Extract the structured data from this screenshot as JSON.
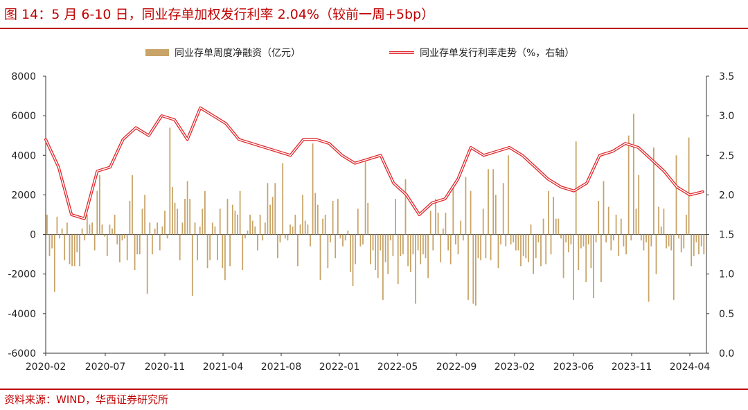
{
  "header": {
    "title": "图 14：5 月 6-10 日，同业存单加权发行利率 2.04%（较前一周+5bp）"
  },
  "footer": {
    "source": "资料来源：WIND，华西证券研究所"
  },
  "colors": {
    "accent": "#c00000",
    "bar": "#c8a468",
    "line": "#e0282c"
  },
  "chart_data": {
    "type": "bar+line",
    "x_tick_labels": [
      "2020-02",
      "2020-07",
      "2020-11",
      "2021-04",
      "2021-08",
      "2022-01",
      "2022-05",
      "2022-09",
      "2023-02",
      "2023-06",
      "2023-11",
      "2024-04"
    ],
    "y_left": {
      "min": -6000,
      "max": 8000,
      "step": 2000,
      "ticks": [
        "-6000",
        "-4000",
        "-2000",
        "0",
        "2000",
        "4000",
        "6000",
        "8000"
      ]
    },
    "y_right": {
      "min": 0.0,
      "max": 3.5,
      "step": 0.5,
      "ticks": [
        "0.0",
        "0.5",
        "1.0",
        "1.5",
        "2.0",
        "2.5",
        "3.0",
        "3.5"
      ]
    },
    "legend": {
      "position": "top",
      "bar_label": "同业存单周度净融资（亿元）",
      "line_label": "同业存单发行利率走势（%，右轴）"
    },
    "series": [
      {
        "name": "同业存单周度净融资（亿元）",
        "type": "bar",
        "axis": "left",
        "values": [
          1000,
          -1100,
          -700,
          -2900,
          900,
          -200,
          300,
          -1300,
          600,
          -1500,
          -1600,
          -1600,
          -900,
          -1600,
          300,
          -300,
          1000,
          500,
          600,
          -800,
          2200,
          3000,
          500,
          -100,
          -1100,
          500,
          300,
          1000,
          -500,
          -1400,
          -300,
          -200,
          -1300,
          1700,
          3000,
          -1800,
          -1000,
          -1000,
          1300,
          2000,
          -3000,
          600,
          -1000,
          300,
          600,
          -800,
          400,
          1200,
          -200,
          5400,
          2400,
          1600,
          1300,
          -1300,
          600,
          1800,
          2700,
          1800,
          -3100,
          600,
          -1300,
          400,
          1300,
          2200,
          -1700,
          -1300,
          600,
          400,
          -1300,
          1300,
          -1700,
          -2300,
          1800,
          -1600,
          1500,
          1200,
          1000,
          2200,
          -1800,
          -200,
          200,
          1000,
          700,
          400,
          -800,
          1000,
          -300,
          600,
          2600,
          1500,
          1900,
          2600,
          -1200,
          -400,
          3600,
          -200,
          -300,
          500,
          400,
          1000,
          -1600,
          500,
          2000,
          700,
          500,
          -600,
          4600,
          2100,
          1500,
          -2300,
          800,
          1000,
          -1700,
          -400,
          1700,
          -1200,
          1800,
          -200,
          -600,
          -300,
          200,
          -1900,
          -2600,
          -1500,
          1300,
          -600,
          -500,
          3700,
          1600,
          -1500,
          -800,
          -1800,
          -2200,
          -800,
          -3300,
          -1400,
          -2000,
          -300,
          -1100,
          1800,
          -2500,
          -1100,
          -1000,
          2800,
          -1600,
          -1900,
          -1000,
          -3500,
          -800,
          -1500,
          -1000,
          -1200,
          -2200,
          1200,
          -800,
          1800,
          1100,
          -1400,
          300,
          1100,
          -800,
          -1500,
          2500,
          -500,
          -1000,
          700,
          -300,
          2900,
          -3300,
          2200,
          -3500,
          -3600,
          -1200,
          -1300,
          1300,
          -1200,
          3300,
          -1300,
          3300,
          2000,
          -1700,
          -500,
          2600,
          -600,
          4000,
          -500,
          -400,
          -800,
          -800,
          -1600,
          -1100,
          -1200,
          -1400,
          500,
          -2000,
          -1200,
          -400,
          -1600,
          800,
          -1500,
          2200,
          -1000,
          1900,
          800,
          800,
          -200,
          -2200,
          -400,
          -900,
          -500,
          -3300,
          4700,
          -1800,
          -700,
          -600,
          -2400,
          -500,
          -1700,
          -3200,
          -400,
          1700,
          -2400,
          2700,
          -400,
          1400,
          -800,
          -300,
          1000,
          -1100,
          800,
          -600,
          -1000,
          5000,
          -300,
          6100,
          1300,
          3000,
          -300,
          -800,
          -400,
          -3400,
          -600,
          4400,
          -2000,
          1400,
          400,
          1300,
          -700,
          -600,
          -800,
          -3300,
          4000,
          -200,
          -900,
          -700,
          1000,
          4900,
          -1600,
          -1100,
          -400,
          -1000,
          -600,
          -1000
        ],
        "peaks_read": {
          "2021-02": 5400,
          "2023-11": 6100,
          "2024-02": 4900
        }
      },
      {
        "name": "同业存单发行利率走势（%，右轴）",
        "type": "line",
        "axis": "right",
        "points": [
          [
            "2020-02",
            2.7
          ],
          [
            "2020-03",
            2.35
          ],
          [
            "2020-04",
            1.75
          ],
          [
            "2020-05",
            1.7
          ],
          [
            "2020-06",
            2.3
          ],
          [
            "2020-07",
            2.35
          ],
          [
            "2020-08",
            2.7
          ],
          [
            "2020-09",
            2.85
          ],
          [
            "2020-10",
            2.75
          ],
          [
            "2020-11",
            3.0
          ],
          [
            "2020-12",
            2.95
          ],
          [
            "2021-01",
            2.7
          ],
          [
            "2021-02",
            3.1
          ],
          [
            "2021-03",
            3.0
          ],
          [
            "2021-04",
            2.9
          ],
          [
            "2021-05",
            2.7
          ],
          [
            "2021-06",
            2.65
          ],
          [
            "2021-07",
            2.6
          ],
          [
            "2021-08",
            2.55
          ],
          [
            "2021-09",
            2.5
          ],
          [
            "2021-10",
            2.7
          ],
          [
            "2021-11",
            2.7
          ],
          [
            "2021-12",
            2.65
          ],
          [
            "2022-01",
            2.5
          ],
          [
            "2022-02",
            2.4
          ],
          [
            "2022-03",
            2.45
          ],
          [
            "2022-04",
            2.5
          ],
          [
            "2022-05",
            2.15
          ],
          [
            "2022-06",
            2.0
          ],
          [
            "2022-07",
            1.75
          ],
          [
            "2022-08",
            1.9
          ],
          [
            "2022-09",
            1.95
          ],
          [
            "2022-10",
            2.2
          ],
          [
            "2022-11",
            2.6
          ],
          [
            "2022-12",
            2.5
          ],
          [
            "2023-01",
            2.55
          ],
          [
            "2023-02",
            2.6
          ],
          [
            "2023-03",
            2.5
          ],
          [
            "2023-04",
            2.35
          ],
          [
            "2023-05",
            2.2
          ],
          [
            "2023-06",
            2.1
          ],
          [
            "2023-07",
            2.05
          ],
          [
            "2023-08",
            2.15
          ],
          [
            "2023-09",
            2.5
          ],
          [
            "2023-10",
            2.55
          ],
          [
            "2023-11",
            2.65
          ],
          [
            "2023-12",
            2.6
          ],
          [
            "2024-01",
            2.45
          ],
          [
            "2024-02",
            2.3
          ],
          [
            "2024-03",
            2.1
          ],
          [
            "2024-04",
            2.0
          ],
          [
            "2024-05",
            2.04
          ]
        ]
      }
    ]
  }
}
